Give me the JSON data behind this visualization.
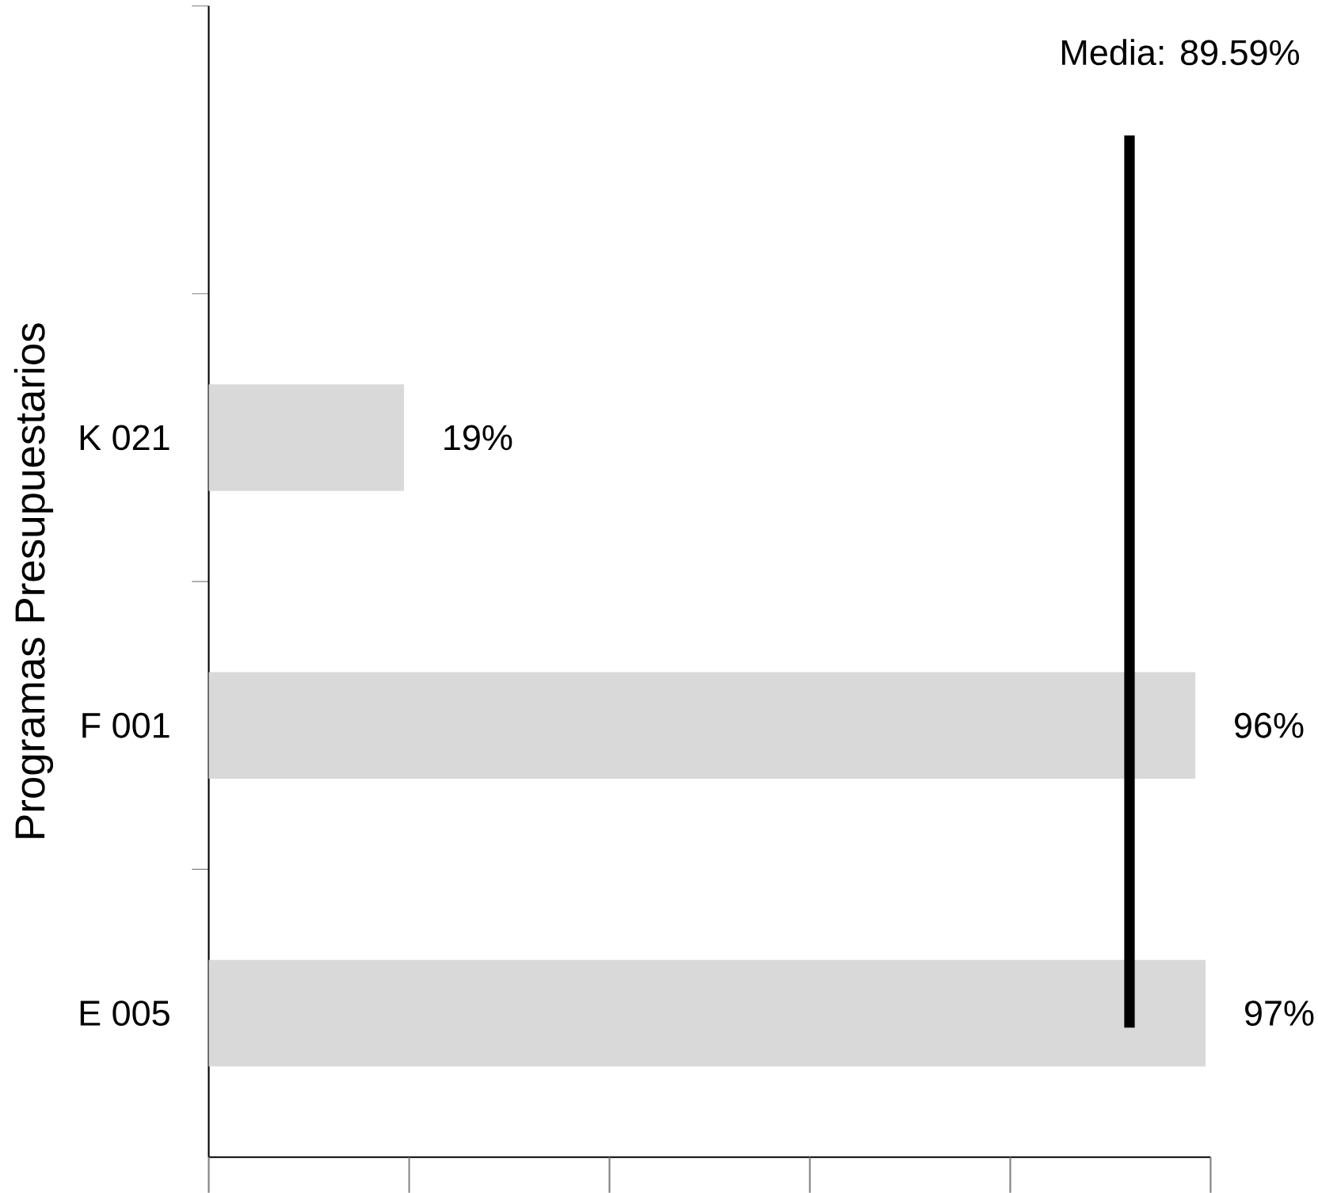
{
  "chart_data": {
    "type": "bar",
    "orientation": "horizontal",
    "ylabel": "Programas Presupuestarios",
    "categories": [
      "K 021",
      "F 001",
      "E 005"
    ],
    "values": [
      19,
      96,
      97
    ],
    "value_labels": [
      "19%",
      "96%",
      "97%"
    ],
    "color": "#d9d9d9",
    "tick_labels": "y",
    "ref_lines": [
      {
        "axis": "x",
        "value": 89.59,
        "label": "Media: 89.59%",
        "color": "#000000"
      }
    ],
    "grid": false
  }
}
